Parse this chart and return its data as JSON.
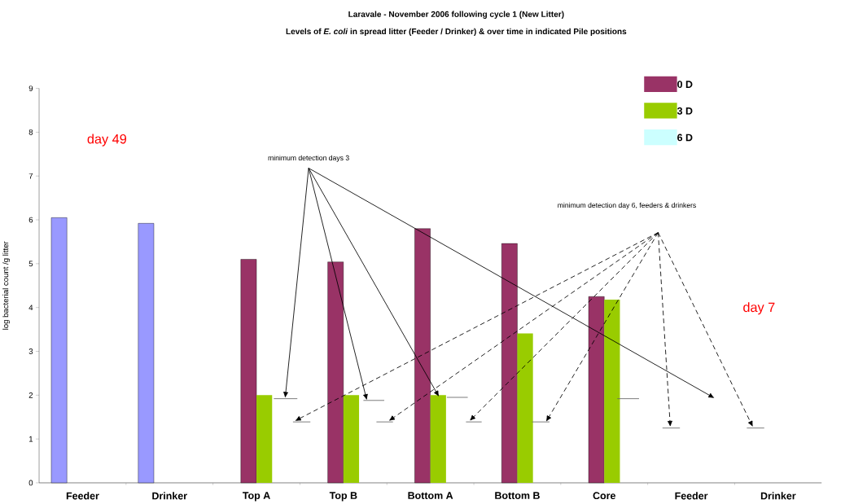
{
  "chart_data": {
    "type": "bar",
    "title": "Laravale - November 2006 following cycle 1 (New Litter)",
    "subtitle": "Levels of *E. coli* in spread litter (Feeder / Drinker) & over time in indicated Pile positions",
    "ylabel": "log bacterial count /g litter",
    "categories": [
      "Feeder",
      "Drinker",
      "Top A",
      "Top B",
      "Bottom A",
      "Bottom B",
      "Core",
      "Feeder",
      "Drinker"
    ],
    "series": [
      {
        "color": "#9999ff",
        "values": [
          6.05,
          5.92,
          null,
          null,
          null,
          null,
          null,
          null,
          null
        ]
      },
      {
        "name": "0 D",
        "color": "#993366",
        "values": [
          null,
          null,
          5.1,
          5.04,
          5.8,
          5.46,
          4.25,
          null,
          null
        ]
      },
      {
        "name": "3 D",
        "color": "#99cc00",
        "values": [
          null,
          null,
          2.0,
          2.0,
          2.0,
          3.41,
          4.18,
          null,
          null
        ]
      },
      {
        "name": "6 D",
        "color": "#ccffff",
        "values": [
          null,
          null,
          null,
          null,
          null,
          null,
          null,
          null,
          null
        ]
      }
    ],
    "annotations": [
      "day 49",
      "day 7",
      "minimum detection days 3",
      "minimum detection day 6, feeders & drinkers"
    ],
    "ylim": [
      0,
      9
    ],
    "yticks": [
      0,
      1,
      2,
      3,
      4,
      5,
      6,
      7,
      8,
      9
    ],
    "legend": "top right",
    "grid": false
  }
}
